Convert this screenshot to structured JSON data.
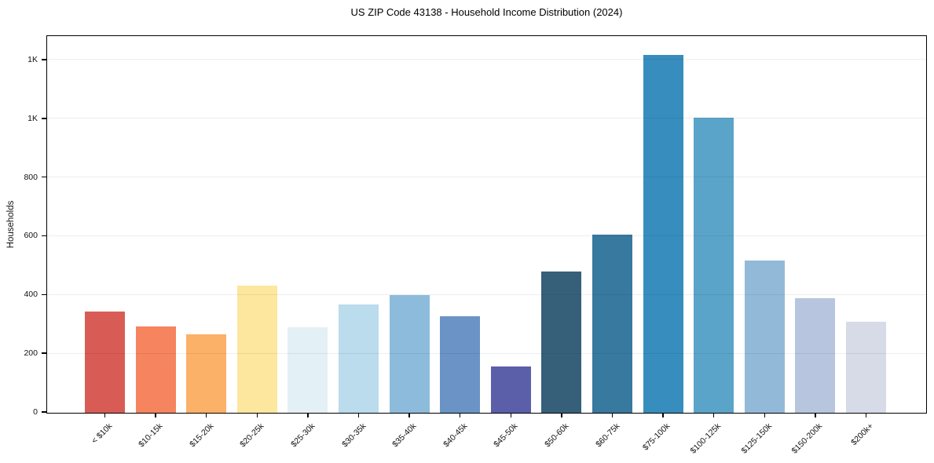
{
  "title": "US ZIP Code 43138 - Household Income Distribution (2024)",
  "chart_data": {
    "type": "bar",
    "title": "US ZIP Code 43138 - Household Income Distribution (2024)",
    "xlabel": "",
    "ylabel": "Households",
    "categories": [
      "< $10k",
      "$10-15k",
      "$15-20k",
      "$20-25k",
      "$25-30k",
      "$30-35k",
      "$35-40k",
      "$40-45k",
      "$45-50k",
      "$50-60k",
      "$60-75k",
      "$75-100k",
      "$100-125k",
      "$125-150k",
      "$150-200k",
      "$200k+"
    ],
    "values": [
      346,
      293,
      268,
      433,
      292,
      369,
      401,
      330,
      159,
      481,
      606,
      1218,
      1006,
      518,
      389,
      309
    ],
    "bar_colors": [
      "#d85c55",
      "#f5845f",
      "#fbb168",
      "#fde79f",
      "#e3f0f6",
      "#badcec",
      "#8dbbdc",
      "#6b93c5",
      "#5b5ea9",
      "#36607a",
      "#38799f",
      "#378dbd",
      "#5ba4c9",
      "#93b9d8",
      "#b7c6de",
      "#d7dae7"
    ],
    "ylim": [
      0,
      1280
    ],
    "yticks": [
      {
        "value": 0,
        "label": "0"
      },
      {
        "value": 200,
        "label": "200"
      },
      {
        "value": 400,
        "label": "400"
      },
      {
        "value": 600,
        "label": "600"
      },
      {
        "value": 800,
        "label": "800"
      },
      {
        "value": 1000,
        "label": "1K"
      },
      {
        "value": 1200,
        "label": "1K"
      }
    ],
    "grid": "horizontal",
    "legend_position": "none",
    "x_tick_rotation_deg": 45
  },
  "colors": {
    "background": "#ffffff",
    "axis": "#000000",
    "grid": "#ededed",
    "text": "#111111"
  }
}
